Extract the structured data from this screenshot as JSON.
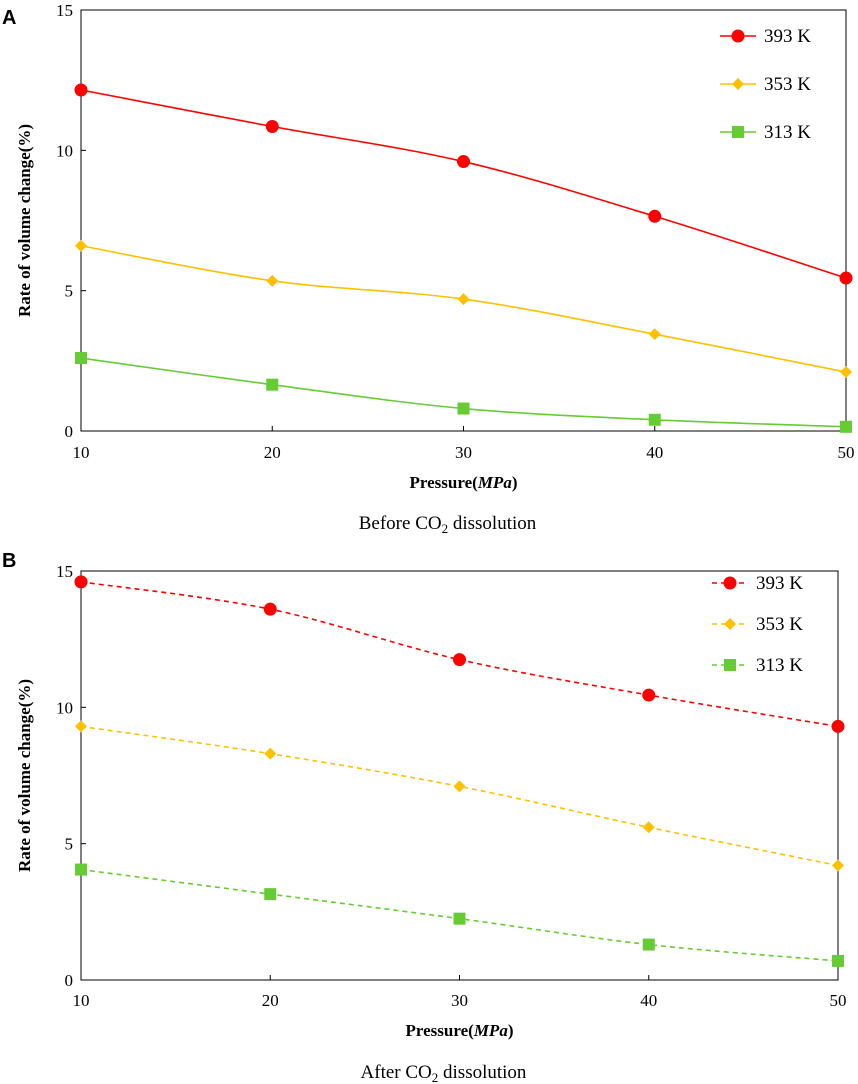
{
  "chart_data": [
    {
      "panel": "A",
      "type": "line",
      "line_style": "solid",
      "caption": {
        "before": "Before CO",
        "sub": "2",
        "after": " dissolution"
      },
      "xlabel": {
        "main": "Pressure(",
        "italic": "MPa",
        "close": ")"
      },
      "ylabel": "Rate of volume change(%)",
      "x": [
        10,
        20,
        30,
        40,
        50
      ],
      "xlim": [
        10,
        50
      ],
      "ylim": [
        0,
        15
      ],
      "xticks": [
        "10",
        "20",
        "30",
        "40",
        "50"
      ],
      "yticks": [
        "0",
        "5",
        "10",
        "15"
      ],
      "legend_position": "top-right",
      "series": [
        {
          "name": "393 K",
          "color": "#ff0000",
          "marker": "circle",
          "values": [
            12.15,
            10.85,
            9.6,
            7.65,
            5.45
          ]
        },
        {
          "name": "353 K",
          "color": "#ffc000",
          "marker": "diamond",
          "values": [
            6.6,
            5.35,
            4.7,
            3.45,
            2.1
          ]
        },
        {
          "name": "313 K",
          "color": "#66cc33",
          "marker": "square",
          "values": [
            2.6,
            1.65,
            0.8,
            0.4,
            0.15
          ]
        }
      ]
    },
    {
      "panel": "B",
      "type": "line",
      "line_style": "dashed",
      "caption": {
        "before": "After CO",
        "sub": "2",
        "after": " dissolution"
      },
      "xlabel": {
        "main": "Pressure(",
        "italic": "MPa",
        "close": ")"
      },
      "ylabel": "Rate of volume change(%)",
      "x": [
        10,
        20,
        30,
        40,
        50
      ],
      "xlim": [
        10,
        50
      ],
      "ylim": [
        0,
        15
      ],
      "xticks": [
        "10",
        "20",
        "30",
        "40",
        "50"
      ],
      "yticks": [
        "0",
        "5",
        "10",
        "15"
      ],
      "legend_position": "top-right",
      "series": [
        {
          "name": "393 K",
          "color": "#ff0000",
          "marker": "circle",
          "values": [
            14.6,
            13.6,
            11.75,
            10.45,
            9.3
          ]
        },
        {
          "name": "353 K",
          "color": "#ffc000",
          "marker": "diamond",
          "values": [
            9.3,
            8.3,
            7.1,
            5.6,
            4.2
          ]
        },
        {
          "name": "313 K",
          "color": "#66cc33",
          "marker": "square",
          "values": [
            4.05,
            3.15,
            2.25,
            1.3,
            0.7
          ]
        }
      ]
    }
  ]
}
